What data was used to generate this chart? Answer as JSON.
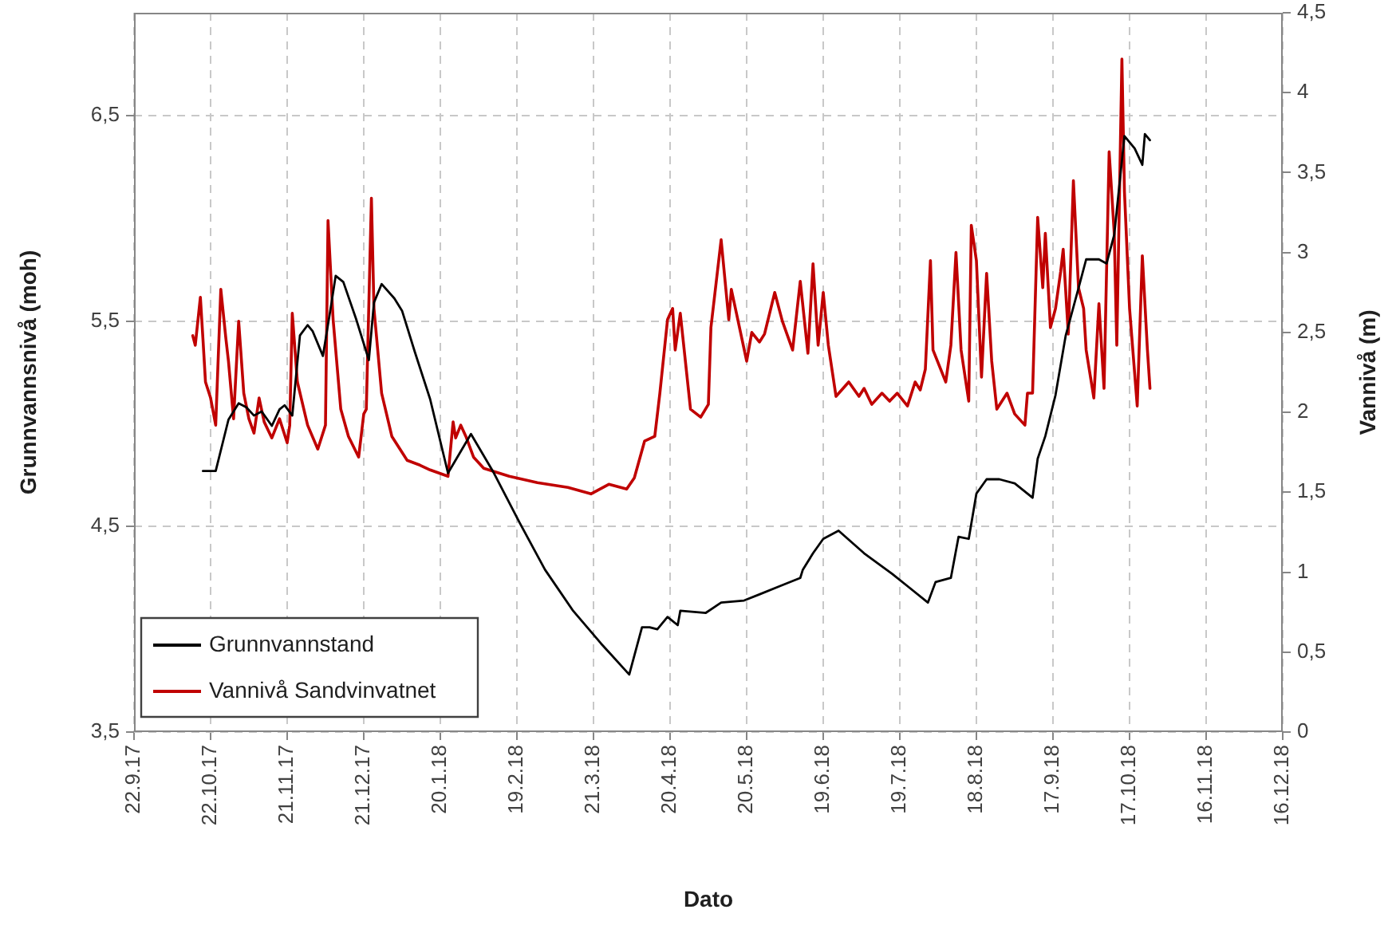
{
  "chart_data": {
    "type": "line",
    "xlabel": "Dato",
    "ylabel": "Grunnvannsnivå (moh)",
    "y2label": "Vannivå (m)",
    "xlim": [
      "2017-09-22",
      "2018-12-16"
    ],
    "xticks": [
      {
        "value": "2017-09-22",
        "label": "22.9.17"
      },
      {
        "value": "2017-10-22",
        "label": "22.10.17"
      },
      {
        "value": "2017-11-21",
        "label": "21.11.17"
      },
      {
        "value": "2017-12-21",
        "label": "21.12.17"
      },
      {
        "value": "2018-01-20",
        "label": "20.1.18"
      },
      {
        "value": "2018-02-19",
        "label": "19.2.18"
      },
      {
        "value": "2018-03-21",
        "label": "21.3.18"
      },
      {
        "value": "2018-04-20",
        "label": "20.4.18"
      },
      {
        "value": "2018-05-20",
        "label": "20.5.18"
      },
      {
        "value": "2018-06-19",
        "label": "19.6.18"
      },
      {
        "value": "2018-07-19",
        "label": "19.7.18"
      },
      {
        "value": "2018-08-18",
        "label": "18.8.18"
      },
      {
        "value": "2018-09-17",
        "label": "17.9.18"
      },
      {
        "value": "2018-10-17",
        "label": "17.10.18"
      },
      {
        "value": "2018-11-16",
        "label": "16.11.18"
      },
      {
        "value": "2018-12-16",
        "label": "16.12.18"
      }
    ],
    "ylim": [
      3.5,
      7.0
    ],
    "yticks": [
      {
        "value": 3.5,
        "label": "3,5"
      },
      {
        "value": 4.5,
        "label": "4,5"
      },
      {
        "value": 5.5,
        "label": "5,5"
      },
      {
        "value": 6.5,
        "label": "6,5"
      }
    ],
    "y2lim": [
      0,
      4.5
    ],
    "y2ticks": [
      0,
      {
        "value": 0.5,
        "label": "0,5"
      },
      1,
      {
        "value": 1.5,
        "label": "1,5"
      },
      2,
      {
        "value": 2.5,
        "label": "2,5"
      },
      3,
      {
        "value": 3.5,
        "label": "3,5"
      },
      4,
      {
        "value": 4.5,
        "label": "4,5"
      }
    ],
    "grid": true,
    "legend": "bottom left",
    "series": [
      {
        "name": "Grunnvannstand",
        "color": "#000000",
        "x": [
          "2017-10-19",
          "2017-10-24",
          "2017-10-29",
          "2017-11-02",
          "2017-11-05",
          "2017-11-08",
          "2017-11-11",
          "2017-11-15",
          "2017-11-18",
          "2017-11-20",
          "2017-11-23",
          "2017-11-26",
          "2017-11-29",
          "2017-12-01",
          "2017-12-05",
          "2017-12-08",
          "2017-12-10",
          "2017-12-13",
          "2017-12-18",
          "2017-12-23",
          "2017-12-25",
          "2017-12-28",
          "2018-01-02",
          "2018-01-05",
          "2018-01-10",
          "2018-01-16",
          "2018-01-23",
          "2018-02-01",
          "2018-02-10",
          "2018-02-20",
          "2018-03-02",
          "2018-03-13",
          "2018-03-24",
          "2018-04-04",
          "2018-04-09",
          "2018-04-12",
          "2018-04-15",
          "2018-04-19",
          "2018-04-23",
          "2018-04-24",
          "2018-05-04",
          "2018-05-10",
          "2018-05-19",
          "2018-05-25",
          "2018-06-02",
          "2018-06-10",
          "2018-06-11",
          "2018-06-15",
          "2018-06-19",
          "2018-06-25",
          "2018-07-05",
          "2018-07-16",
          "2018-07-22",
          "2018-07-30",
          "2018-08-02",
          "2018-08-08",
          "2018-08-11",
          "2018-08-15",
          "2018-08-18",
          "2018-08-22",
          "2018-08-27",
          "2018-09-02",
          "2018-09-09",
          "2018-09-11",
          "2018-09-14",
          "2018-09-18",
          "2018-09-22",
          "2018-09-27",
          "2018-09-30",
          "2018-10-05",
          "2018-10-08",
          "2018-10-11",
          "2018-10-15",
          "2018-10-19",
          "2018-10-22",
          "2018-10-23",
          "2018-10-25"
        ],
        "values": [
          4.77,
          4.77,
          5.02,
          5.1,
          5.08,
          5.04,
          5.06,
          4.99,
          5.07,
          5.09,
          5.04,
          5.43,
          5.48,
          5.45,
          5.33,
          5.56,
          5.72,
          5.69,
          5.51,
          5.31,
          5.59,
          5.68,
          5.61,
          5.55,
          5.35,
          5.12,
          4.76,
          4.95,
          4.76,
          4.52,
          4.29,
          4.09,
          3.93,
          3.78,
          4.01,
          4.01,
          4.0,
          4.06,
          4.02,
          4.09,
          4.08,
          4.13,
          4.14,
          4.17,
          4.21,
          4.25,
          4.29,
          4.37,
          4.44,
          4.48,
          4.37,
          4.27,
          4.21,
          4.13,
          4.23,
          4.25,
          4.45,
          4.44,
          4.66,
          4.73,
          4.73,
          4.71,
          4.64,
          4.83,
          4.94,
          5.14,
          5.43,
          5.66,
          5.8,
          5.8,
          5.78,
          5.92,
          6.4,
          6.34,
          6.26,
          6.41,
          6.38
        ]
      },
      {
        "name": "Vannivå Sandvinvatnet",
        "color": "#c00000",
        "axis": "y2",
        "x": [
          "2017-10-15",
          "2017-10-16",
          "2017-10-18",
          "2017-10-19",
          "2017-10-20",
          "2017-10-22",
          "2017-10-24",
          "2017-10-26",
          "2017-10-28",
          "2017-10-29",
          "2017-10-31",
          "2017-11-02",
          "2017-11-04",
          "2017-11-06",
          "2017-11-08",
          "2017-11-10",
          "2017-11-12",
          "2017-11-15",
          "2017-11-18",
          "2017-11-21",
          "2017-11-22",
          "2017-11-23",
          "2017-11-25",
          "2017-11-29",
          "2017-12-03",
          "2017-12-06",
          "2017-12-07",
          "2017-12-09",
          "2017-12-12",
          "2017-12-15",
          "2017-12-19",
          "2017-12-21",
          "2017-12-22",
          "2017-12-24",
          "2017-12-25",
          "2017-12-28",
          "2018-01-01",
          "2018-01-07",
          "2018-01-12",
          "2018-01-16",
          "2018-01-23",
          "2018-01-25",
          "2018-01-26",
          "2018-01-28",
          "2018-01-30",
          "2018-02-02",
          "2018-02-06",
          "2018-02-16",
          "2018-02-27",
          "2018-03-11",
          "2018-03-20",
          "2018-03-27",
          "2018-04-03",
          "2018-04-06",
          "2018-04-10",
          "2018-04-14",
          "2018-04-16",
          "2018-04-19",
          "2018-04-21",
          "2018-04-22",
          "2018-04-24",
          "2018-04-28",
          "2018-05-02",
          "2018-05-05",
          "2018-05-06",
          "2018-05-10",
          "2018-05-13",
          "2018-05-14",
          "2018-05-16",
          "2018-05-20",
          "2018-05-22",
          "2018-05-25",
          "2018-05-27",
          "2018-05-31",
          "2018-06-03",
          "2018-06-07",
          "2018-06-10",
          "2018-06-13",
          "2018-06-15",
          "2018-06-17",
          "2018-06-19",
          "2018-06-21",
          "2018-06-24",
          "2018-06-29",
          "2018-07-03",
          "2018-07-05",
          "2018-07-08",
          "2018-07-12",
          "2018-07-15",
          "2018-07-18",
          "2018-07-22",
          "2018-07-25",
          "2018-07-27",
          "2018-07-29",
          "2018-07-31",
          "2018-08-01",
          "2018-08-06",
          "2018-08-08",
          "2018-08-10",
          "2018-08-12",
          "2018-08-15",
          "2018-08-16",
          "2018-08-18",
          "2018-08-20",
          "2018-08-22",
          "2018-08-24",
          "2018-08-26",
          "2018-08-30",
          "2018-09-02",
          "2018-09-06",
          "2018-09-07",
          "2018-09-09",
          "2018-09-11",
          "2018-09-13",
          "2018-09-14",
          "2018-09-16",
          "2018-09-18",
          "2018-09-20",
          "2018-09-21",
          "2018-09-23",
          "2018-09-25",
          "2018-09-27",
          "2018-09-29",
          "2018-09-30",
          "2018-10-03",
          "2018-10-05",
          "2018-10-07",
          "2018-10-09",
          "2018-10-11",
          "2018-10-12",
          "2018-10-14",
          "2018-10-15",
          "2018-10-17",
          "2018-10-20",
          "2018-10-22",
          "2018-10-24",
          "2018-10-25"
        ],
        "values": [
          2.48,
          2.42,
          2.72,
          2.46,
          2.19,
          2.09,
          1.92,
          2.77,
          2.46,
          2.32,
          1.96,
          2.57,
          2.12,
          1.96,
          1.87,
          2.09,
          1.94,
          1.84,
          1.96,
          1.81,
          1.92,
          2.62,
          2.19,
          1.92,
          1.77,
          1.92,
          3.2,
          2.58,
          2.02,
          1.85,
          1.72,
          1.99,
          2.02,
          3.34,
          2.65,
          2.12,
          1.85,
          1.7,
          1.67,
          1.64,
          1.6,
          1.94,
          1.84,
          1.92,
          1.85,
          1.72,
          1.65,
          1.6,
          1.56,
          1.53,
          1.49,
          1.55,
          1.52,
          1.59,
          1.82,
          1.85,
          2.12,
          2.58,
          2.65,
          2.39,
          2.62,
          2.02,
          1.97,
          2.05,
          2.53,
          3.08,
          2.58,
          2.77,
          2.62,
          2.32,
          2.5,
          2.44,
          2.49,
          2.75,
          2.57,
          2.39,
          2.82,
          2.37,
          2.93,
          2.42,
          2.75,
          2.42,
          2.1,
          2.19,
          2.1,
          2.15,
          2.05,
          2.12,
          2.07,
          2.12,
          2.04,
          2.19,
          2.14,
          2.27,
          2.95,
          2.39,
          2.19,
          2.42,
          3.0,
          2.39,
          2.07,
          3.17,
          2.95,
          2.22,
          2.87,
          2.32,
          2.02,
          2.12,
          1.99,
          1.92,
          2.12,
          2.12,
          3.22,
          2.78,
          3.12,
          2.53,
          2.65,
          2.88,
          3.02,
          2.49,
          3.45,
          2.78,
          2.65,
          2.39,
          2.09,
          2.68,
          2.15,
          3.63,
          3.12,
          2.42,
          4.21,
          3.38,
          2.65,
          2.04,
          2.98,
          2.39,
          2.15
        ]
      }
    ]
  }
}
